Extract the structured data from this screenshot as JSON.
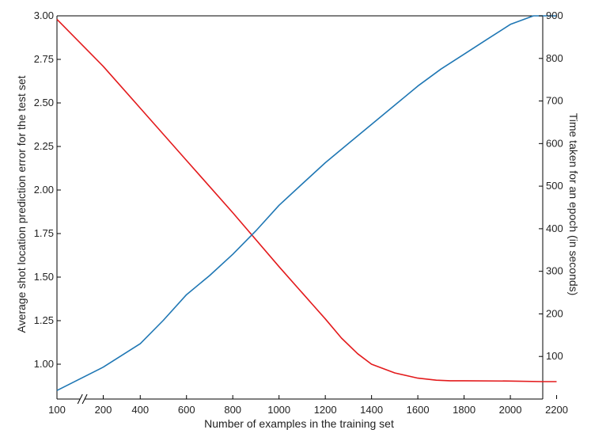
{
  "chart_data": {
    "type": "line",
    "title": "",
    "xlabel": "Number of examples in the training set",
    "ylabel_left": "Average shot location prediction error  for the test set",
    "ylabel_right": "Time taken for an epoch (in seconds)",
    "xlim": [
      100,
      2200
    ],
    "ylim_left": [
      0.8,
      3.0
    ],
    "ylim_right": [
      0,
      900
    ],
    "x_ticks": [
      "100",
      "200",
      "400",
      "600",
      "800",
      "1000",
      "1200",
      "1400",
      "1600",
      "1800",
      "2000",
      "2200"
    ],
    "x_tick_values": [
      100,
      300,
      460,
      660,
      860,
      1060,
      1260,
      1460,
      1660,
      1860,
      2060,
      2260
    ],
    "axis_break": "between 100 and 200",
    "y_left_ticks": [
      "1.00",
      "1.25",
      "1.50",
      "1.75",
      "2.00",
      "2.25",
      "2.50",
      "2.75",
      "3.00"
    ],
    "y_left_tick_values": [
      1.0,
      1.25,
      1.5,
      1.75,
      2.0,
      2.25,
      2.5,
      2.75,
      3.0
    ],
    "y_right_ticks": [
      "100",
      "200",
      "300",
      "400",
      "500",
      "600",
      "700",
      "800",
      "900"
    ],
    "y_right_tick_values": [
      100,
      200,
      300,
      400,
      500,
      600,
      700,
      800,
      900
    ],
    "grid": false,
    "legend": "none",
    "series": [
      {
        "axis": "left",
        "color": "#e31a1c",
        "x": [
          100,
          300,
          460,
          660,
          860,
          1060,
          1200,
          1260,
          1330,
          1400,
          1460,
          1560,
          1660,
          1740,
          1800,
          1860,
          2060,
          2200,
          2260
        ],
        "y": [
          2.98,
          2.71,
          2.47,
          2.17,
          1.87,
          1.56,
          1.35,
          1.26,
          1.15,
          1.06,
          1.0,
          0.95,
          0.92,
          0.908,
          0.905,
          0.905,
          0.903,
          0.9,
          0.9
        ]
      },
      {
        "axis": "right",
        "color": "#1f77b4",
        "x": [
          100,
          300,
          460,
          560,
          660,
          760,
          860,
          960,
          1060,
          1160,
          1260,
          1360,
          1460,
          1560,
          1660,
          1760,
          1860,
          1960,
          2060,
          2160,
          2260
        ],
        "y": [
          20,
          75,
          130,
          185,
          245,
          290,
          340,
          395,
          455,
          505,
          555,
          600,
          645,
          690,
          735,
          775,
          810,
          845,
          880,
          910,
          945
        ]
      }
    ]
  }
}
